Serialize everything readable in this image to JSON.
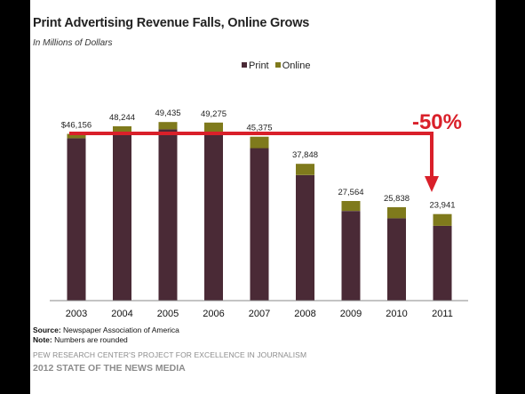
{
  "title": "Print Advertising Revenue Falls, Online Grows",
  "subtitle": "In Millions of Dollars",
  "legend": [
    {
      "name": "Print",
      "color": "#4a2a36"
    },
    {
      "name": "Online",
      "color": "#7f7a1c"
    }
  ],
  "chart_data": {
    "type": "bar",
    "stacked": true,
    "categories": [
      "2003",
      "2004",
      "2005",
      "2006",
      "2007",
      "2008",
      "2009",
      "2010",
      "2011"
    ],
    "series": [
      {
        "name": "Print",
        "color": "#4a2a36",
        "values": [
          44939,
          46703,
          47408,
          46611,
          42209,
          34740,
          24821,
          22795,
          20692
        ]
      },
      {
        "name": "Online",
        "color": "#7f7a1c",
        "values": [
          1217,
          1541,
          2027,
          2664,
          3166,
          3108,
          2743,
          3043,
          3249
        ]
      }
    ],
    "totals": [
      "$46,156",
      "48,244",
      "49,435",
      "49,275",
      "45,375",
      "37,848",
      "27,564",
      "25,838",
      "23,941"
    ],
    "ylim": [
      0,
      50000
    ],
    "grid": false,
    "legend_position": "top-center",
    "annotation": {
      "text": "-50%",
      "color": "#d9202a"
    }
  },
  "source_label": "Source:",
  "source_text": " Newspaper Association of America",
  "note_label": "Note:",
  "note_text": " Numbers are rounded",
  "footer_line1": "PEW RESEARCH CENTER'S PROJECT FOR EXCELLENCE IN JOURNALISM",
  "footer_line2": "2012 STATE OF THE NEWS MEDIA"
}
